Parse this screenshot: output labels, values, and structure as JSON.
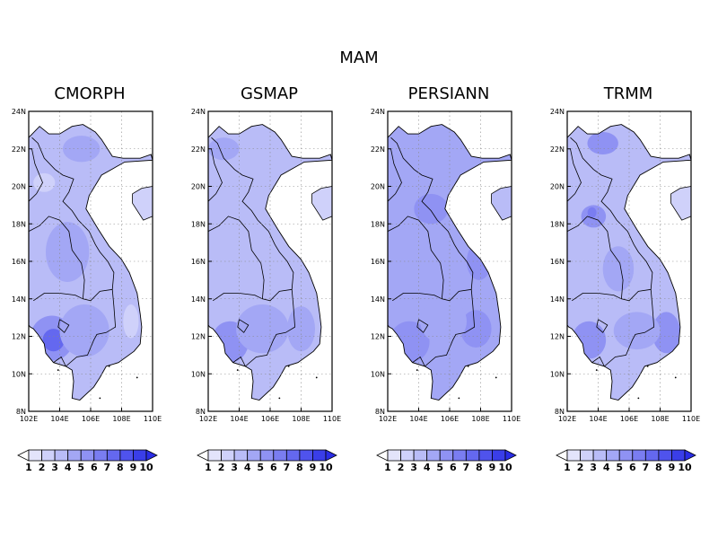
{
  "figure": {
    "title": "MAM"
  },
  "lon_ticks": [
    "102E",
    "104E",
    "106E",
    "108E",
    "110E"
  ],
  "lat_ticks": [
    "24N",
    "22N",
    "20N",
    "18N",
    "16N",
    "14N",
    "12N",
    "10N",
    "8N"
  ],
  "extent": {
    "lon": [
      102,
      110
    ],
    "lat": [
      8,
      24
    ]
  },
  "colorbar": {
    "labels": [
      "1",
      "2",
      "3",
      "4",
      "5",
      "6",
      "7",
      "8",
      "9",
      "10"
    ],
    "colors": [
      "#ffffff",
      "#e3e4fb",
      "#cfd1fa",
      "#b9bcf7",
      "#a3a7f5",
      "#8f92f3",
      "#7a7df1",
      "#6468ef",
      "#4f53ed",
      "#3a3ee8",
      "#2a2de6"
    ]
  },
  "panels": [
    {
      "title": "CMORPH",
      "base_level": 3,
      "hot_level": 7
    },
    {
      "title": "GSMAP",
      "base_level": 3,
      "hot_level": 5
    },
    {
      "title": "PERSIANN",
      "base_level": 4,
      "hot_level": 5
    },
    {
      "title": "TRMM",
      "base_level": 3,
      "hot_level": 6
    }
  ]
}
